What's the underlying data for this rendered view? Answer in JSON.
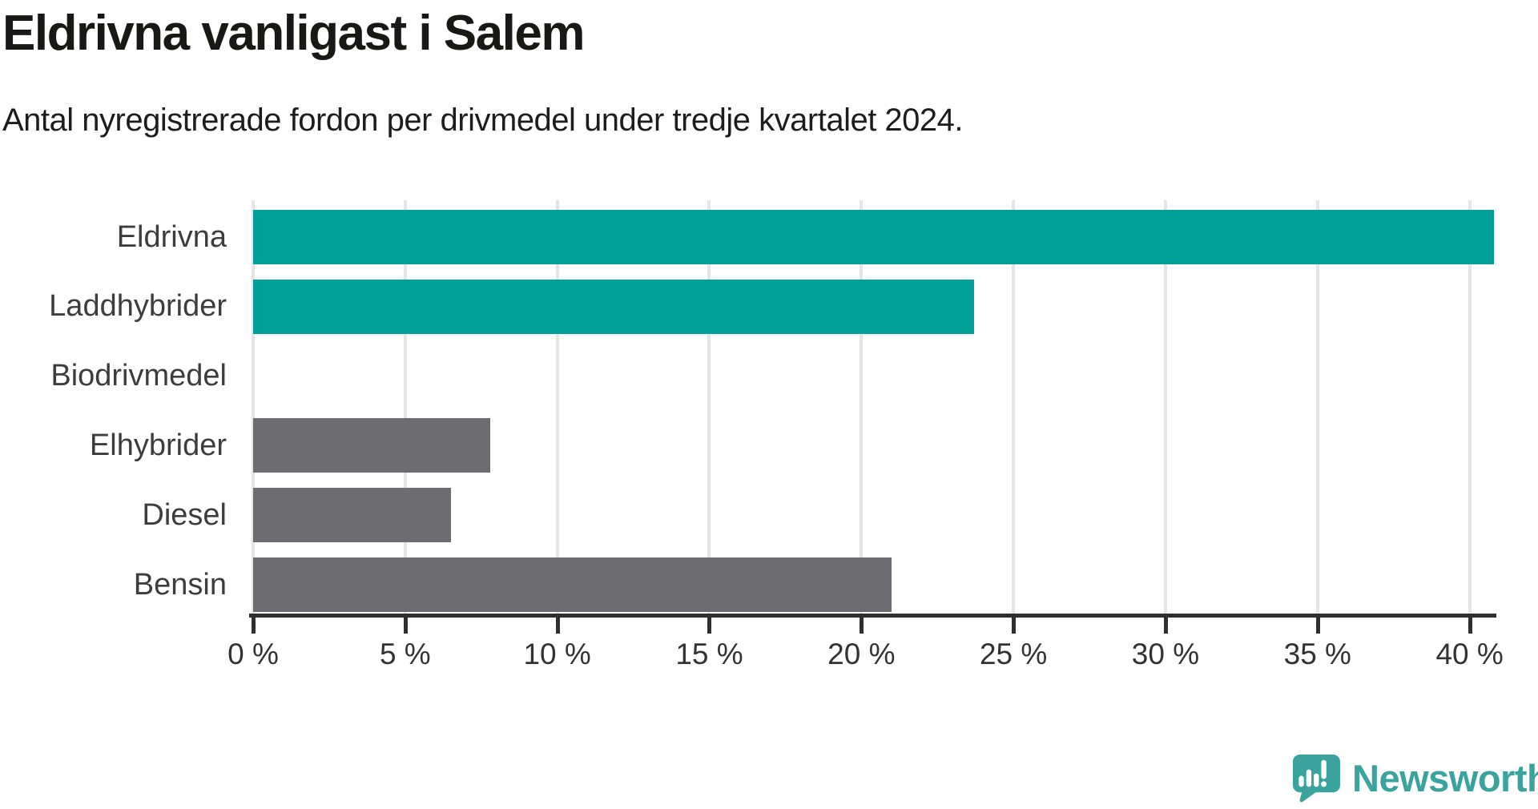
{
  "chart_data": {
    "type": "bar",
    "orientation": "horizontal",
    "title": "Eldrivna vanligast i Salem",
    "subtitle": "Antal nyregistrerade fordon per drivmedel under tredje kvartalet 2024.",
    "categories": [
      "Eldrivna",
      "Laddhybrider",
      "Biodrivmedel",
      "Elhybrider",
      "Diesel",
      "Bensin"
    ],
    "values": [
      40.8,
      23.7,
      0,
      7.8,
      6.5,
      21
    ],
    "value_unit": "%",
    "xlim": [
      0,
      40.8
    ],
    "xticks": [
      0,
      5,
      10,
      15,
      20,
      25,
      30,
      35,
      40
    ],
    "xtick_labels": [
      "0 %",
      "5 %",
      "10 %",
      "15 %",
      "20 %",
      "25 %",
      "30 %",
      "35 %",
      "40 %"
    ],
    "grid": true,
    "legend": "none",
    "bar_colors": [
      "#00a099",
      "#00a099",
      "#6c6d73",
      "#6c6d73",
      "#6c6d73",
      "#6c6d73"
    ],
    "highlight_color": "#00a099",
    "default_color": "#6c6d73"
  },
  "colors": {
    "background": "#ffffff",
    "title": "#181815",
    "subtitle": "#1d1d1b",
    "category_label": "#3d3d3d",
    "tick_label": "#333333",
    "axis": "#2f2f2f",
    "gridline": "#e5e5e5",
    "brand": "#3ba39d"
  },
  "branding": {
    "name": "Newsworthy",
    "icon": "newsworthy-logo-icon"
  }
}
